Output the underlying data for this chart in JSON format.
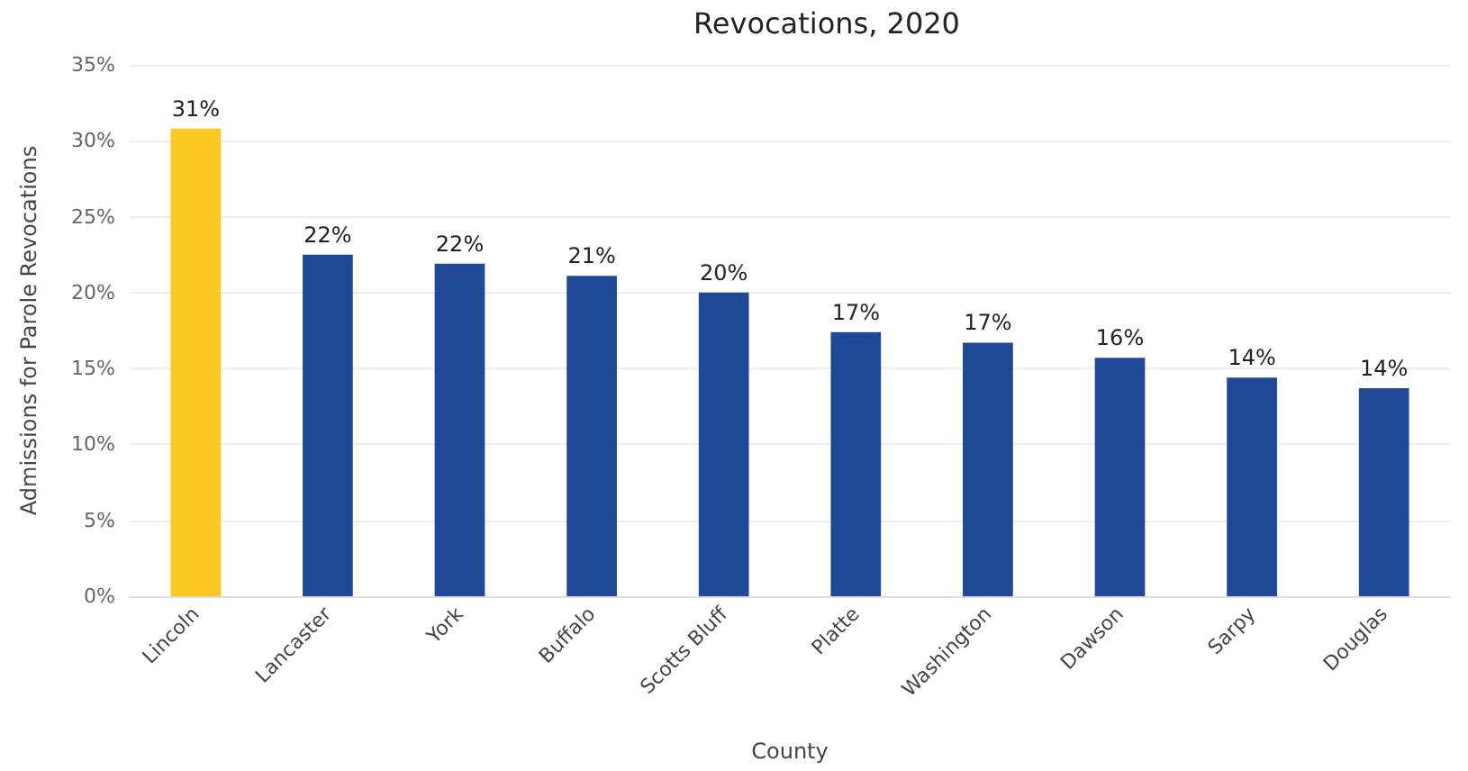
{
  "chart_data": {
    "type": "bar",
    "title": "Revocations, 2020",
    "xlabel": "County",
    "ylabel": "Admissions for Parole Revocations",
    "categories": [
      "Lincoln",
      "Lancaster",
      "York",
      "Buffalo",
      "Scotts Bluff",
      "Platte",
      "Washington",
      "Dawson",
      "Sarpy",
      "Douglas"
    ],
    "values": [
      30.8,
      22.5,
      21.9,
      21.1,
      20.0,
      17.4,
      16.7,
      15.7,
      14.4,
      13.7
    ],
    "colors": [
      "#fcc824",
      "#1f4896",
      "#1f4896",
      "#1f4896",
      "#1f4896",
      "#1f4896",
      "#1f4896",
      "#1f4896",
      "#1f4896",
      "#1f4896"
    ],
    "value_labels": [
      "31%",
      "22%",
      "22%",
      "21%",
      "20%",
      "17%",
      "17%",
      "16%",
      "14%",
      "14%"
    ],
    "ylim": [
      0,
      35
    ],
    "yticks": [
      {
        "value": 0,
        "label": "0%"
      },
      {
        "value": 5,
        "label": "5%"
      },
      {
        "value": 10,
        "label": "10%"
      },
      {
        "value": 15,
        "label": "15%"
      },
      {
        "value": 20,
        "label": "20%"
      },
      {
        "value": 25,
        "label": "25%"
      },
      {
        "value": 30,
        "label": "30%"
      },
      {
        "value": 35,
        "label": "35%"
      }
    ],
    "grid": "y"
  }
}
